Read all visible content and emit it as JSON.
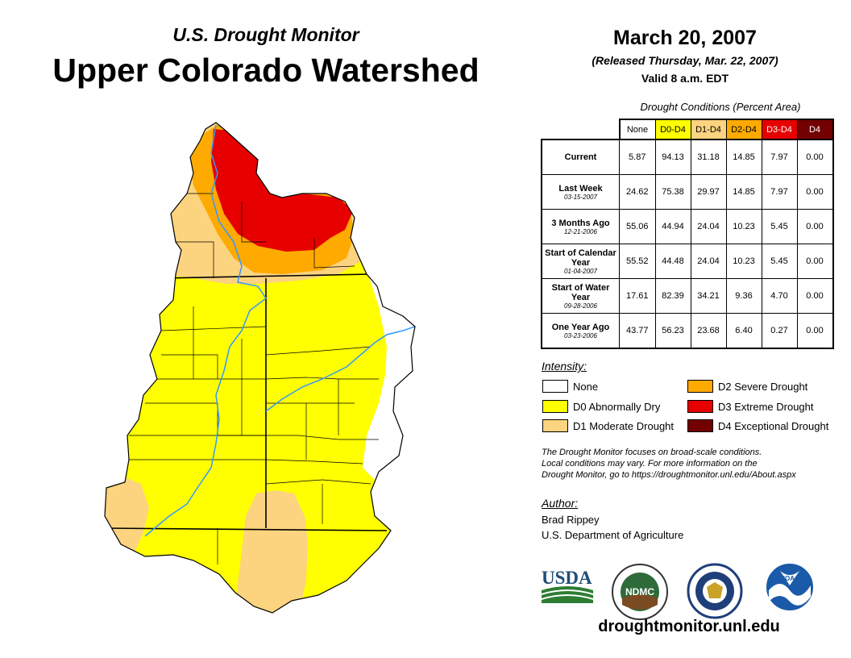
{
  "header": {
    "subtitle": "U.S. Drought Monitor",
    "title": "Upper Colorado Watershed",
    "date": "March 20, 2007",
    "released": "(Released Thursday, Mar. 22, 2007)",
    "valid": "Valid 8 a.m. EDT"
  },
  "table": {
    "caption": "Drought Conditions (Percent Area)",
    "columns": [
      "None",
      "D0-D4",
      "D1-D4",
      "D2-D4",
      "D3-D4",
      "D4"
    ],
    "column_colors": [
      "#ffffff",
      "#ffff00",
      "#fcd37f",
      "#ffaa00",
      "#e60000",
      "#730000"
    ],
    "rows": [
      {
        "label": "Current",
        "date": "",
        "values": [
          "5.87",
          "94.13",
          "31.18",
          "14.85",
          "7.97",
          "0.00"
        ]
      },
      {
        "label": "Last Week",
        "date": "03-15-2007",
        "values": [
          "24.62",
          "75.38",
          "29.97",
          "14.85",
          "7.97",
          "0.00"
        ]
      },
      {
        "label": "3 Months Ago",
        "date": "12-21-2006",
        "values": [
          "55.06",
          "44.94",
          "24.04",
          "10.23",
          "5.45",
          "0.00"
        ]
      },
      {
        "label": "Start of Calendar Year",
        "date": "01-04-2007",
        "values": [
          "55.52",
          "44.48",
          "24.04",
          "10.23",
          "5.45",
          "0.00"
        ]
      },
      {
        "label": "Start of Water Year",
        "date": "09-28-2006",
        "values": [
          "17.61",
          "82.39",
          "34.21",
          "9.36",
          "4.70",
          "0.00"
        ]
      },
      {
        "label": "One Year Ago",
        "date": "03-23-2006",
        "values": [
          "43.77",
          "56.23",
          "23.68",
          "6.40",
          "0.27",
          "0.00"
        ]
      }
    ]
  },
  "legend": {
    "title": "Intensity:",
    "items": [
      {
        "label": "None",
        "color": "#ffffff"
      },
      {
        "label": "D0 Abnormally Dry",
        "color": "#ffff00"
      },
      {
        "label": "D1 Moderate Drought",
        "color": "#fcd37f"
      },
      {
        "label": "D2 Severe Drought",
        "color": "#ffaa00"
      },
      {
        "label": "D3 Extreme Drought",
        "color": "#e60000"
      },
      {
        "label": "D4 Exceptional Drought",
        "color": "#730000"
      }
    ]
  },
  "note": {
    "line1": "The Drought Monitor focuses on broad-scale conditions.",
    "line2": "Local conditions may vary. For more information on the",
    "line3": "Drought Monitor, go to https://droughtmonitor.unl.edu/About.aspx"
  },
  "author": {
    "title": "Author:",
    "name": "Brad Rippey",
    "org": "U.S. Department of Agriculture"
  },
  "logos": {
    "usda": "USDA",
    "ndmc": "NDMC",
    "noaa": "NOAA"
  },
  "url": "droughtmonitor.unl.edu",
  "map_colors": {
    "none": "#ffffff",
    "d0": "#ffff00",
    "d1": "#fcd37f",
    "d2": "#ffaa00",
    "d3": "#e60000",
    "river": "#3399ff"
  }
}
